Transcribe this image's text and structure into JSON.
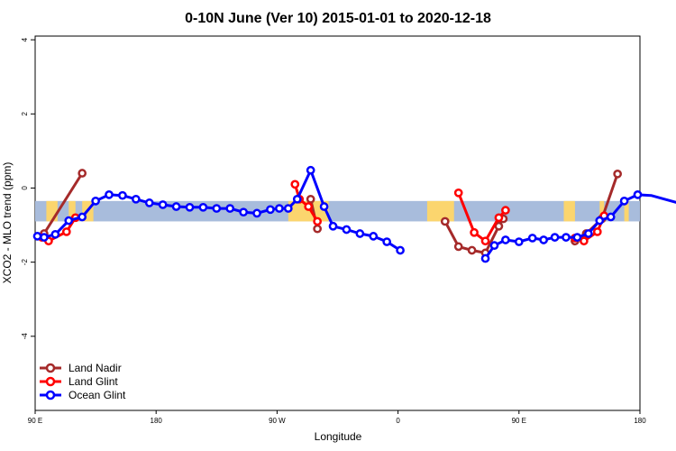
{
  "chart_data": {
    "type": "line",
    "title": "0-10N June (Ver 10)   2015-01-01 to 2020-12-18",
    "xlabel": "Longitude",
    "ylabel": "XCO2 - MLO trend (ppm)",
    "xlim": [
      -90,
      180
    ],
    "ylim": [
      -6,
      4.1
    ],
    "x_ticks": [
      {
        "value": -90,
        "label": "90 E"
      },
      {
        "value": -36,
        "label": "180"
      },
      {
        "value": 18,
        "label": "90 W"
      },
      {
        "value": 72,
        "label": "0"
      },
      {
        "value": 126,
        "label": "90 E"
      },
      {
        "value": 180,
        "label": "180"
      }
    ],
    "y_ticks": [
      4,
      2,
      0,
      -2,
      -4
    ],
    "band": {
      "y_top": -0.35,
      "y_bottom": -0.9,
      "color": "#a8bcdc",
      "land_color": "#fbd56e"
    },
    "land_segments": [
      [
        -85,
        -80
      ],
      [
        -75,
        -72
      ],
      [
        -69,
        -64
      ],
      [
        23,
        41
      ],
      [
        85,
        97
      ],
      [
        146,
        151
      ],
      [
        162,
        164
      ],
      [
        173,
        175
      ]
    ],
    "series": [
      {
        "name": "Land Nadir",
        "color": "#a52a2a",
        "segments": [
          [
            [
              -86,
              -1.23
            ],
            [
              -69,
              0.4
            ]
          ],
          [
            [
              33,
              -0.3
            ],
            [
              36,
              -1.1
            ]
          ],
          [
            [
              93,
              -0.9
            ],
            [
              99,
              -1.58
            ],
            [
              105,
              -1.68
            ],
            [
              111,
              -1.75
            ],
            [
              117,
              -1.03
            ],
            [
              119,
              -0.83
            ]
          ],
          [
            [
              151,
              -1.43
            ],
            [
              156,
              -1.23
            ],
            [
              163,
              -0.83
            ],
            [
              170,
              0.38
            ]
          ]
        ]
      },
      {
        "name": "Land Glint",
        "color": "#ff0000",
        "segments": [
          [
            [
              -87,
              -1.33
            ],
            [
              -84,
              -1.43
            ],
            [
              -76,
              -1.18
            ],
            [
              -72,
              -0.8
            ]
          ],
          [
            [
              26,
              0.1
            ],
            [
              28,
              -0.3
            ],
            [
              32,
              -0.5
            ],
            [
              36,
              -0.9
            ]
          ],
          [
            [
              99,
              -0.13
            ],
            [
              106,
              -1.2
            ],
            [
              111,
              -1.43
            ],
            [
              117,
              -0.8
            ],
            [
              120,
              -0.6
            ]
          ],
          [
            [
              151,
              -1.35
            ],
            [
              155,
              -1.43
            ],
            [
              161,
              -1.18
            ],
            [
              164,
              -0.75
            ]
          ]
        ]
      },
      {
        "name": "Ocean Glint",
        "color": "#0000ff",
        "segments": [
          [
            [
              -89,
              -1.3
            ],
            [
              -86,
              -1.33
            ],
            [
              -81,
              -1.25
            ],
            [
              -75,
              -0.88
            ],
            [
              -69,
              -0.78
            ],
            [
              -63,
              -0.35
            ],
            [
              -57,
              -0.18
            ],
            [
              -51,
              -0.2
            ],
            [
              -45,
              -0.3
            ],
            [
              -39,
              -0.4
            ],
            [
              -33,
              -0.45
            ],
            [
              -27,
              -0.5
            ],
            [
              -21,
              -0.52
            ],
            [
              -15,
              -0.52
            ],
            [
              -9,
              -0.55
            ],
            [
              -3,
              -0.55
            ],
            [
              3,
              -0.65
            ],
            [
              9,
              -0.68
            ],
            [
              15,
              -0.58
            ],
            [
              19,
              -0.55
            ],
            [
              23,
              -0.55
            ],
            [
              27,
              -0.3
            ],
            [
              33,
              0.48
            ],
            [
              39,
              -0.5
            ],
            [
              43,
              -1.03
            ],
            [
              49,
              -1.12
            ],
            [
              55,
              -1.23
            ],
            [
              61,
              -1.3
            ],
            [
              67,
              -1.45
            ],
            [
              73,
              -1.68
            ]
          ],
          [
            [
              111,
              -1.9
            ],
            [
              115,
              -1.55
            ],
            [
              120,
              -1.4
            ],
            [
              126,
              -1.45
            ],
            [
              132,
              -1.35
            ],
            [
              137,
              -1.4
            ],
            [
              142,
              -1.33
            ],
            [
              147,
              -1.33
            ],
            [
              152,
              -1.33
            ],
            [
              157,
              -1.23
            ],
            [
              162,
              -0.88
            ],
            [
              167,
              -0.78
            ],
            [
              173,
              -0.35
            ],
            [
              179,
              -0.18
            ],
            [
              185,
              -0.2
            ],
            [
              191,
              -0.3
            ],
            [
              197,
              -0.4
            ]
          ]
        ]
      }
    ],
    "legend": {
      "position": "bottom-left"
    }
  }
}
